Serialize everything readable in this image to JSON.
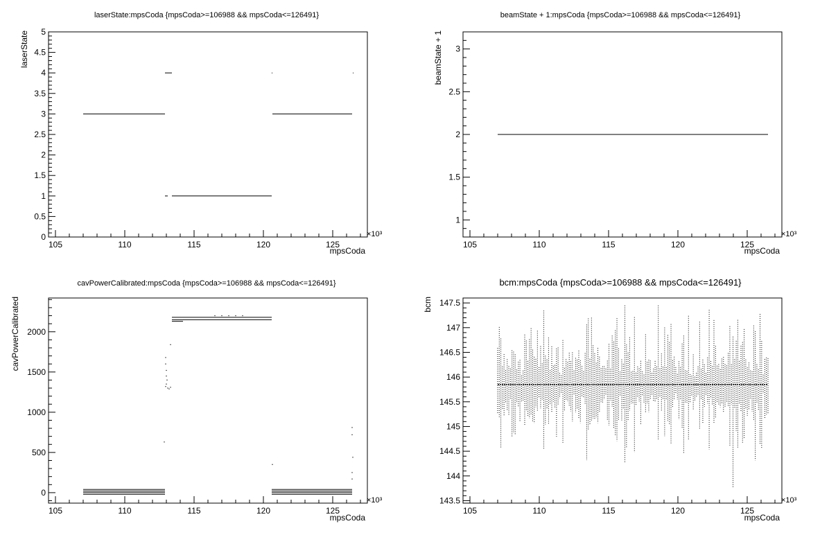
{
  "chart_data": [
    {
      "type": "scatter",
      "title": "laserState:mpsCoda {mpsCoda>=106988 && mpsCoda<=126491}",
      "xlabel": "mpsCoda",
      "ylabel": "laserState",
      "x_exponent": "×10³",
      "xlim": [
        104.5,
        127.5
      ],
      "ylim": [
        0,
        5
      ],
      "x_ticks": [
        105,
        110,
        115,
        120,
        125
      ],
      "y_ticks": [
        0,
        0.5,
        1,
        1.5,
        2,
        2.5,
        3,
        3.5,
        4,
        4.5,
        5
      ],
      "grid": false,
      "segments": [
        {
          "y": 3,
          "x": [
            107.0,
            112.9
          ]
        },
        {
          "y": 4,
          "x": [
            112.9,
            113.4
          ]
        },
        {
          "y": 1,
          "x": [
            112.9,
            113.1
          ]
        },
        {
          "y": 1,
          "x": [
            113.4,
            120.6
          ]
        },
        {
          "y": 4,
          "x": [
            120.6,
            120.65
          ]
        },
        {
          "y": 3,
          "x": [
            120.65,
            126.4
          ]
        },
        {
          "y": 4,
          "x": [
            126.45,
            126.5
          ]
        }
      ]
    },
    {
      "type": "scatter",
      "title": "beamState + 1:mpsCoda {mpsCoda>=106988 && mpsCoda<=126491}",
      "xlabel": "mpsCoda",
      "ylabel": "beamState + 1",
      "x_exponent": "×10³",
      "xlim": [
        104.5,
        127.5
      ],
      "ylim": [
        0.8,
        3.2
      ],
      "x_ticks": [
        105,
        110,
        115,
        120,
        125
      ],
      "y_ticks": [
        1,
        1.5,
        2,
        2.5,
        3
      ],
      "grid": false,
      "segments": [
        {
          "y": 2,
          "x": [
            107.0,
            126.5
          ]
        }
      ]
    },
    {
      "type": "scatter",
      "title": "cavPowerCalibrated:mpsCoda {mpsCoda>=106988 && mpsCoda<=126491}",
      "xlabel": "mpsCoda",
      "ylabel": "cavPowerCalibrated",
      "x_exponent": "×10³",
      "xlim": [
        104.5,
        127.5
      ],
      "ylim": [
        -130,
        2420
      ],
      "x_ticks": [
        105,
        110,
        115,
        120,
        125
      ],
      "y_ticks": [
        0,
        500,
        1000,
        1500,
        2000
      ],
      "grid": false,
      "segments": [
        {
          "y": 40,
          "x": [
            107.0,
            112.9
          ]
        },
        {
          "y": 20,
          "x": [
            107.0,
            112.9
          ]
        },
        {
          "y": 0,
          "x": [
            107.0,
            112.9
          ]
        },
        {
          "y": -20,
          "x": [
            107.0,
            112.9
          ]
        },
        {
          "y": 2180,
          "x": [
            113.4,
            120.6
          ]
        },
        {
          "y": 2150,
          "x": [
            113.4,
            120.6
          ]
        },
        {
          "y": 2130,
          "x": [
            113.4,
            114.2
          ]
        },
        {
          "y": 40,
          "x": [
            120.6,
            126.4
          ]
        },
        {
          "y": 20,
          "x": [
            120.6,
            126.4
          ]
        },
        {
          "y": 0,
          "x": [
            120.6,
            126.4
          ]
        },
        {
          "y": -20,
          "x": [
            120.6,
            126.4
          ]
        }
      ],
      "points": [
        [
          112.85,
          630
        ],
        [
          112.95,
          1680
        ],
        [
          112.95,
          1600
        ],
        [
          113.0,
          1520
        ],
        [
          113.0,
          1450
        ],
        [
          113.05,
          1400
        ],
        [
          113.0,
          1350
        ],
        [
          112.95,
          1320
        ],
        [
          113.1,
          1300
        ],
        [
          113.2,
          1290
        ],
        [
          113.3,
          1310
        ],
        [
          113.3,
          1840
        ],
        [
          116.5,
          2200
        ],
        [
          117.0,
          2200
        ],
        [
          117.5,
          2200
        ],
        [
          118.0,
          2200
        ],
        [
          118.5,
          2200
        ],
        [
          120.65,
          350
        ],
        [
          126.4,
          810
        ],
        [
          126.4,
          720
        ],
        [
          126.45,
          440
        ],
        [
          126.4,
          250
        ],
        [
          126.4,
          170
        ]
      ]
    },
    {
      "type": "scatter",
      "title": "bcm:mpsCoda {mpsCoda>=106988 && mpsCoda<=126491}",
      "xlabel": "mpsCoda",
      "ylabel": "bcm",
      "x_exponent": "×10³",
      "xlim": [
        104.5,
        127.5
      ],
      "ylim": [
        143.45,
        147.6
      ],
      "x_ticks": [
        105,
        110,
        115,
        120,
        125
      ],
      "y_ticks": [
        143.5,
        144,
        144.5,
        145,
        145.5,
        146,
        146.5,
        147,
        147.5
      ],
      "grid": false,
      "band": {
        "x": [
          107.0,
          126.5
        ],
        "center": 145.85,
        "min": 143.75,
        "max": 147.45
      }
    }
  ]
}
